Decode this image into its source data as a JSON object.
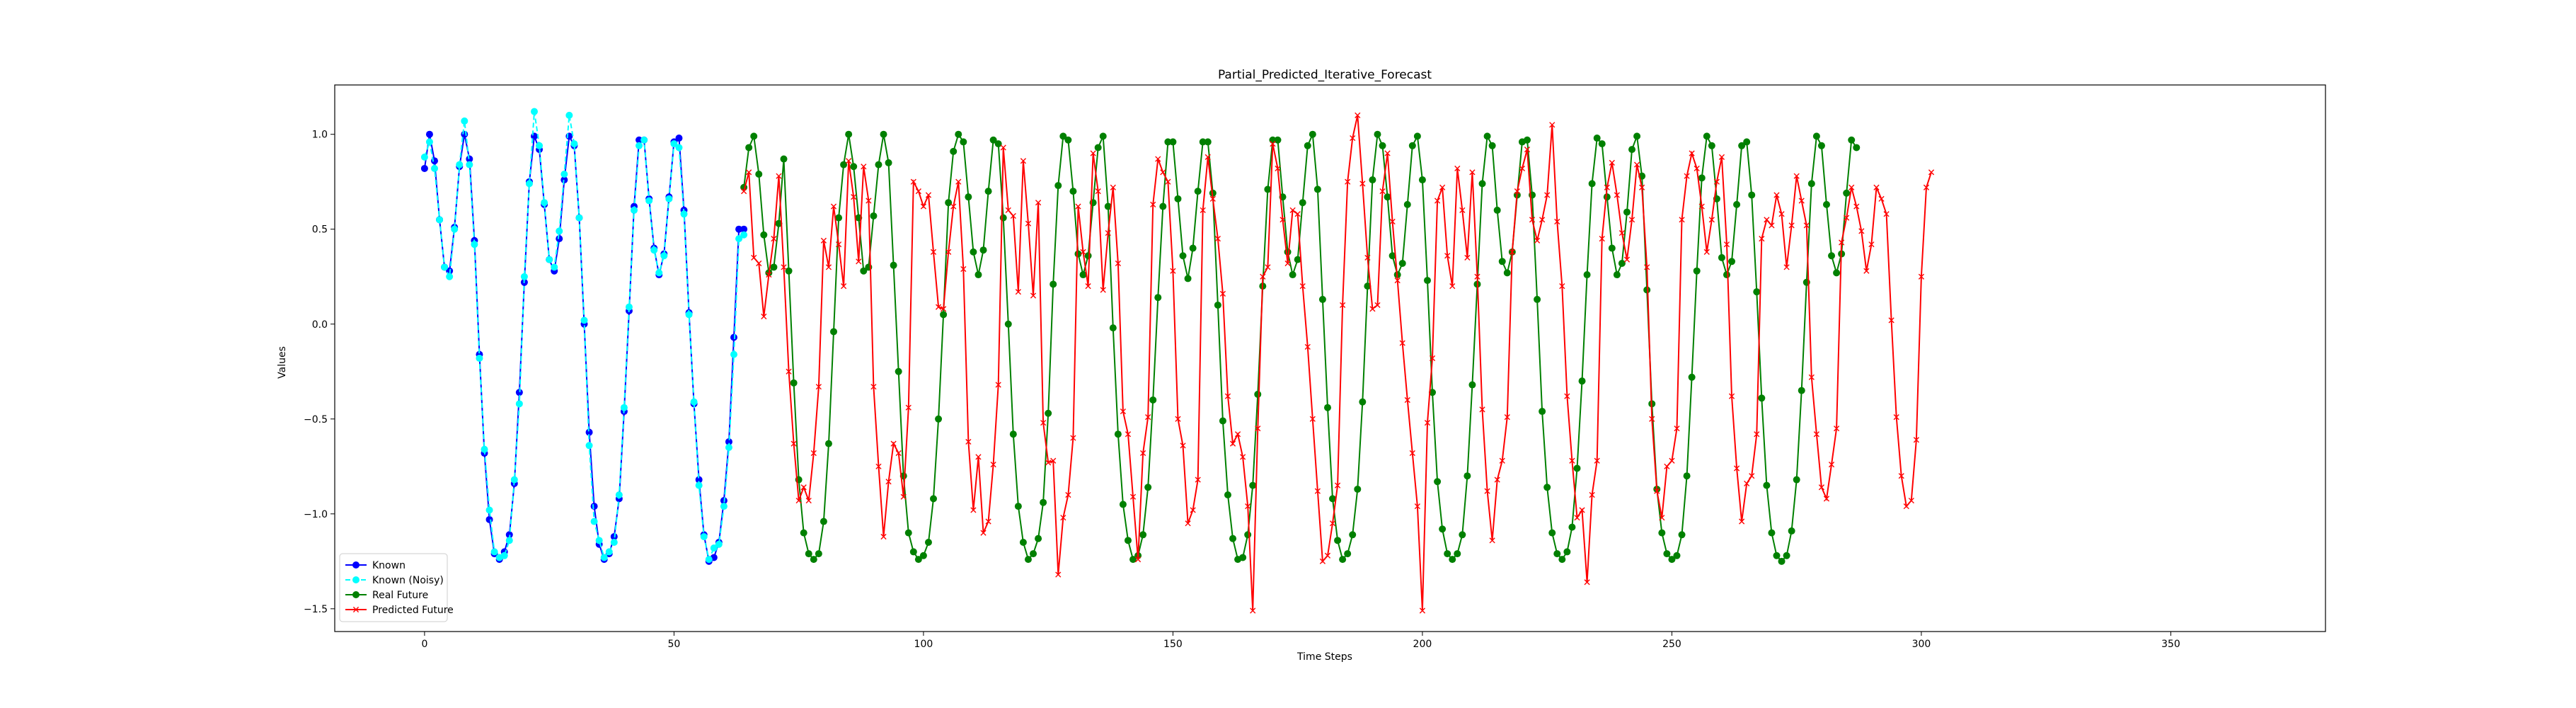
{
  "chart_data": {
    "type": "line",
    "title": "Partial_Predicted_Iterative_Forecast",
    "xlabel": "Time Steps",
    "ylabel": "Values",
    "xlim": [
      -18,
      381
    ],
    "ylim": [
      -1.62,
      1.26
    ],
    "x_ticks": [
      0,
      50,
      100,
      150,
      200,
      250,
      300,
      350
    ],
    "y_ticks": [
      -1.5,
      -1.0,
      -0.5,
      0.0,
      0.5,
      1.0
    ],
    "x_tick_labels": [
      "0",
      "50",
      "100",
      "150",
      "200",
      "250",
      "300",
      "350"
    ],
    "y_tick_labels": [
      "−1.5",
      "−1.0",
      "−0.5",
      "0.0",
      "0.5",
      "1.0"
    ],
    "legend_position": "lower-left",
    "series": [
      {
        "name": "Known",
        "color": "#0000ff",
        "line_style": "solid",
        "marker": "circle",
        "x_start": 0,
        "values": [
          0.82,
          1.0,
          0.86,
          0.55,
          0.3,
          0.28,
          0.51,
          0.83,
          1.0,
          0.87,
          0.44,
          -0.16,
          -0.68,
          -1.03,
          -1.21,
          -1.24,
          -1.2,
          -1.11,
          -0.84,
          -0.36,
          0.22,
          0.75,
          0.99,
          0.92,
          0.63,
          0.34,
          0.28,
          0.45,
          0.76,
          0.99,
          0.94,
          0.56,
          0.0,
          -0.57,
          -0.96,
          -1.16,
          -1.24,
          -1.21,
          -1.12,
          -0.92,
          -0.46,
          0.07,
          0.62,
          0.97,
          0.97,
          0.66,
          0.4,
          0.26,
          0.37,
          0.67,
          0.96,
          0.98,
          0.6,
          0.06,
          -0.42,
          -0.82,
          -1.11,
          -1.25,
          -1.23,
          -1.15,
          -0.93,
          -0.62,
          -0.07,
          0.5,
          0.5
        ]
      },
      {
        "name": "Known (Noisy)",
        "color": "#00ffff",
        "line_style": "dashed",
        "marker": "circle",
        "x_start": 0,
        "values": [
          0.88,
          0.96,
          0.82,
          0.55,
          0.3,
          0.25,
          0.5,
          0.84,
          1.07,
          0.84,
          0.42,
          -0.18,
          -0.66,
          -0.98,
          -1.2,
          -1.23,
          -1.22,
          -1.14,
          -0.82,
          -0.42,
          0.25,
          0.74,
          1.12,
          0.94,
          0.64,
          0.34,
          0.3,
          0.49,
          0.79,
          1.1,
          0.95,
          0.56,
          0.02,
          -0.64,
          -1.04,
          -1.14,
          -1.23,
          -1.2,
          -1.15,
          -0.9,
          -0.44,
          0.09,
          0.6,
          0.94,
          0.97,
          0.65,
          0.39,
          0.27,
          0.36,
          0.66,
          0.95,
          0.93,
          0.58,
          0.05,
          -0.41,
          -0.85,
          -1.12,
          -1.24,
          -1.18,
          -1.16,
          -0.96,
          -0.65,
          -0.16,
          0.45,
          0.47
        ]
      },
      {
        "name": "Real Future",
        "color": "#008000",
        "line_style": "solid",
        "marker": "circle",
        "x_start": 64,
        "values": [
          0.72,
          0.93,
          0.99,
          0.79,
          0.47,
          0.27,
          0.3,
          0.53,
          0.87,
          0.28,
          -0.31,
          -0.82,
          -1.1,
          -1.21,
          -1.24,
          -1.21,
          -1.04,
          -0.63,
          -0.04,
          0.56,
          0.84,
          1.0,
          0.83,
          0.56,
          0.28,
          0.3,
          0.57,
          0.84,
          1.0,
          0.85,
          0.31,
          -0.25,
          -0.8,
          -1.1,
          -1.2,
          -1.24,
          -1.22,
          -1.15,
          -0.92,
          -0.5,
          0.05,
          0.64,
          0.91,
          1.0,
          0.96,
          0.67,
          0.38,
          0.26,
          0.39,
          0.7,
          0.97,
          0.95,
          0.56,
          0.0,
          -0.58,
          -0.96,
          -1.15,
          -1.24,
          -1.21,
          -1.13,
          -0.94,
          -0.47,
          0.21,
          0.73,
          0.99,
          0.97,
          0.7,
          0.37,
          0.26,
          0.36,
          0.64,
          0.93,
          0.99,
          0.62,
          -0.02,
          -0.58,
          -0.95,
          -1.14,
          -1.24,
          -1.22,
          -1.11,
          -0.86,
          -0.4,
          0.14,
          0.62,
          0.96,
          0.96,
          0.66,
          0.36,
          0.24,
          0.4,
          0.7,
          0.96,
          0.96,
          0.69,
          0.1,
          -0.51,
          -0.9,
          -1.13,
          -1.24,
          -1.23,
          -1.11,
          -0.85,
          -0.37,
          0.2,
          0.71,
          0.97,
          0.97,
          0.67,
          0.38,
          0.26,
          0.34,
          0.64,
          0.94,
          1.0,
          0.71,
          0.13,
          -0.44,
          -0.92,
          -1.14,
          -1.24,
          -1.21,
          -1.11,
          -0.87,
          -0.41,
          0.2,
          0.76,
          1.0,
          0.94,
          0.67,
          0.36,
          0.26,
          0.32,
          0.63,
          0.94,
          0.99,
          0.76,
          0.23,
          -0.36,
          -0.83,
          -1.08,
          -1.21,
          -1.24,
          -1.21,
          -1.11,
          -0.8,
          -0.32,
          0.21,
          0.74,
          0.99,
          0.94,
          0.6,
          0.33,
          0.27,
          0.38,
          0.68,
          0.96,
          0.97,
          0.68,
          0.13,
          -0.46,
          -0.86,
          -1.1,
          -1.21,
          -1.24,
          -1.2,
          -1.07,
          -0.76,
          -0.3,
          0.26,
          0.74,
          0.98,
          0.95,
          0.67,
          0.4,
          0.26,
          0.32,
          0.59,
          0.92,
          0.99,
          0.78,
          0.18,
          -0.42,
          -0.87,
          -1.1,
          -1.21,
          -1.24,
          -1.22,
          -1.11,
          -0.8,
          -0.28,
          0.28,
          0.77,
          0.99,
          0.94,
          0.66,
          0.35,
          0.26,
          0.33,
          0.63,
          0.94,
          0.96,
          0.68,
          0.17,
          -0.39,
          -0.85,
          -1.1,
          -1.22,
          -1.25,
          -1.22,
          -1.09,
          -0.82,
          -0.35,
          0.22,
          0.74,
          0.99,
          0.94,
          0.63,
          0.36,
          0.27,
          0.37,
          0.69,
          0.97,
          0.93
        ]
      },
      {
        "name": "Predicted Future",
        "color": "#ff0000",
        "line_style": "solid",
        "marker": "x",
        "x_start": 64,
        "values": [
          0.7,
          0.8,
          0.35,
          0.32,
          0.04,
          0.26,
          0.45,
          0.78,
          0.3,
          -0.25,
          -0.63,
          -0.93,
          -0.86,
          -0.93,
          -0.68,
          -0.33,
          0.44,
          0.3,
          0.62,
          0.42,
          0.2,
          0.86,
          0.67,
          0.33,
          0.83,
          0.65,
          -0.33,
          -0.75,
          -1.12,
          -0.83,
          -0.63,
          -0.68,
          -0.91,
          -0.44,
          0.75,
          0.7,
          0.62,
          0.68,
          0.38,
          0.09,
          0.08,
          0.38,
          0.62,
          0.75,
          0.29,
          -0.62,
          -0.98,
          -0.7,
          -1.1,
          -1.04,
          -0.74,
          -0.32,
          0.93,
          0.6,
          0.57,
          0.17,
          0.86,
          0.53,
          0.15,
          0.64,
          -0.52,
          -0.73,
          -0.72,
          -1.32,
          -1.02,
          -0.9,
          -0.6,
          0.62,
          0.38,
          0.2,
          0.9,
          0.7,
          0.18,
          0.48,
          0.72,
          0.32,
          -0.46,
          -0.58,
          -0.91,
          -1.24,
          -0.68,
          -0.49,
          0.63,
          0.87,
          0.8,
          0.75,
          0.28,
          -0.5,
          -0.64,
          -1.05,
          -0.98,
          -0.82,
          0.6,
          0.88,
          0.66,
          0.45,
          0.16,
          -0.38,
          -0.63,
          -0.58,
          -0.7,
          -0.96,
          -1.51,
          -0.55,
          0.25,
          0.3,
          0.95,
          0.82,
          0.55,
          0.32,
          0.6,
          0.58,
          0.2,
          -0.12,
          -0.5,
          -0.88,
          -1.25,
          -1.22,
          -1.05,
          -0.85,
          0.1,
          0.75,
          0.98,
          1.1,
          0.74,
          0.35,
          0.08,
          0.1,
          0.7,
          0.9,
          0.54,
          0.23,
          -0.1,
          -0.4,
          -0.68,
          -0.96,
          -1.51,
          -0.52,
          -0.18,
          0.65,
          0.72,
          0.36,
          0.2,
          0.82,
          0.6,
          0.35,
          0.8,
          0.25,
          -0.45,
          -0.88,
          -1.14,
          -0.82,
          -0.72,
          -0.49,
          0.38,
          0.7,
          0.82,
          0.92,
          0.55,
          0.44,
          0.55,
          0.68,
          1.05,
          0.54,
          0.2,
          -0.38,
          -0.72,
          -1.02,
          -0.98,
          -1.36,
          -0.9,
          -0.72,
          0.45,
          0.72,
          0.85,
          0.68,
          0.48,
          0.34,
          0.55,
          0.84,
          0.72,
          0.3,
          -0.5,
          -0.88,
          -1.02,
          -0.75,
          -0.72,
          -0.55,
          0.55,
          0.78,
          0.9,
          0.82,
          0.62,
          0.38,
          0.55,
          0.75,
          0.88,
          0.42,
          -0.38,
          -0.76,
          -1.04,
          -0.84,
          -0.8,
          -0.58,
          0.45,
          0.55,
          0.52,
          0.68,
          0.58,
          0.3,
          0.52,
          0.78,
          0.65,
          0.52,
          -0.28,
          -0.58,
          -0.86,
          -0.92,
          -0.74,
          -0.55,
          0.43,
          0.56,
          0.72,
          0.62,
          0.49,
          0.28,
          0.42,
          0.72,
          0.66,
          0.58,
          0.02,
          -0.49,
          -0.8,
          -0.96,
          -0.93,
          -0.61,
          0.25,
          0.72,
          0.8
        ]
      }
    ]
  }
}
